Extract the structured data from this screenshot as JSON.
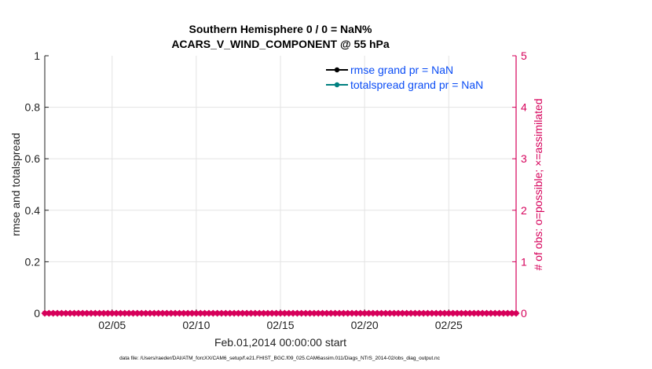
{
  "chart_data": {
    "type": "line",
    "title": [
      "Southern Hemisphere 0 / 0 = NaN%",
      "ACARS_V_WIND_COMPONENT @ 55 hPa"
    ],
    "xlabel": "Feb.01,2014 00:00:00 start",
    "ylabel_left": "rmse and totalspread",
    "ylabel_right": "# of obs: o=possible; ×=assimilated",
    "xlim_days_of_feb_2014": [
      1,
      29
    ],
    "x_ticks": [
      {
        "day": 5,
        "label": "02/05"
      },
      {
        "day": 10,
        "label": "02/10"
      },
      {
        "day": 15,
        "label": "02/15"
      },
      {
        "day": 20,
        "label": "02/20"
      },
      {
        "day": 25,
        "label": "02/25"
      }
    ],
    "ylim_left": [
      0,
      1
    ],
    "yticks_left": [
      "0",
      "0.2",
      "0.4",
      "0.6",
      "0.8",
      "1"
    ],
    "ylim_right": [
      0,
      5
    ],
    "yticks_right": [
      "0",
      "1",
      "2",
      "3",
      "4",
      "5"
    ],
    "grid": true,
    "legend_position": "top-right",
    "series": [
      {
        "name": "rmse grand pr = NaN",
        "color": "#000000",
        "values": []
      },
      {
        "name": "totalspread grand pr = NaN",
        "color": "#008080",
        "values": []
      }
    ],
    "obs_counts": {
      "color": "#d6005a",
      "x_days": [
        1,
        1.25,
        1.5,
        1.75,
        2,
        2.25,
        2.5,
        2.75,
        3,
        3.25,
        3.5,
        3.75,
        4,
        4.25,
        4.5,
        4.75,
        5,
        5.25,
        5.5,
        5.75,
        6,
        6.25,
        6.5,
        6.75,
        7,
        7.25,
        7.5,
        7.75,
        8,
        8.25,
        8.5,
        8.75,
        9,
        9.25,
        9.5,
        9.75,
        10,
        10.25,
        10.5,
        10.75,
        11,
        11.25,
        11.5,
        11.75,
        12,
        12.25,
        12.5,
        12.75,
        13,
        13.25,
        13.5,
        13.75,
        14,
        14.25,
        14.5,
        14.75,
        15,
        15.25,
        15.5,
        15.75,
        16,
        16.25,
        16.5,
        16.75,
        17,
        17.25,
        17.5,
        17.75,
        18,
        18.25,
        18.5,
        18.75,
        19,
        19.25,
        19.5,
        19.75,
        20,
        20.25,
        20.5,
        20.75,
        21,
        21.25,
        21.5,
        21.75,
        22,
        22.25,
        22.5,
        22.75,
        23,
        23.25,
        23.5,
        23.75,
        24,
        24.25,
        24.5,
        24.75,
        25,
        25.25,
        25.5,
        25.75,
        26,
        26.25,
        26.5,
        26.75,
        27,
        27.25,
        27.5,
        27.75,
        28,
        28.25,
        28.5,
        28.75,
        29
      ],
      "possible": 0,
      "assimilated": 0
    },
    "footnote": "data file: /Users/raeder/DAI/ATM_forcXX/CAM6_setup/f.e21.FHIST_BGC.f09_025.CAM6assim.011/Diags_NTrS_2014-02/obs_diag_output.nc"
  }
}
